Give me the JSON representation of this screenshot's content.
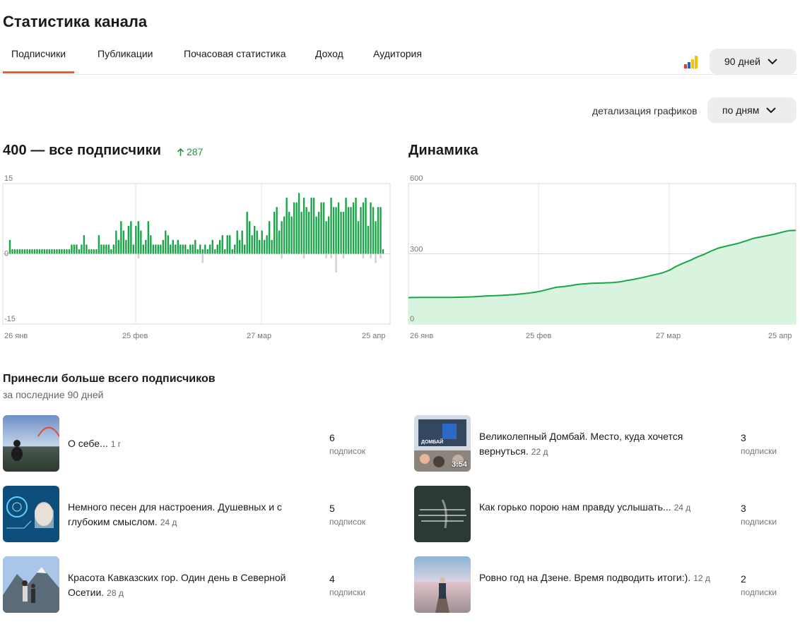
{
  "page_title": "Статистика канала",
  "tabs": [
    {
      "label": "Подписчики",
      "active": true
    },
    {
      "label": "Публикации",
      "active": false
    },
    {
      "label": "Почасовая статистика",
      "active": false
    },
    {
      "label": "Доход",
      "active": false
    },
    {
      "label": "Аудитория",
      "active": false
    }
  ],
  "colors": {
    "accent": "#f25b21",
    "green": "#1a9a3e",
    "bar_green": "#1aa54a",
    "bar_gray": "#d0d0d0",
    "area_fill": "#d8f3de",
    "line": "#1aa54a"
  },
  "period_dropdown": {
    "value": "90 дней"
  },
  "detail": {
    "label": "детализация графиков",
    "value": "по дням"
  },
  "subscribers_chart": {
    "title": "400 — все подписчики",
    "growth": "287"
  },
  "dynamics_chart": {
    "title": "Динамика"
  },
  "chart_data": [
    {
      "type": "bar",
      "title": "400 — все подписчики",
      "y_ticks": [
        "15",
        "0",
        "-15"
      ],
      "ylim": [
        -15,
        15
      ],
      "x_tick_labels": [
        "26 янв",
        "25 фев",
        "27 мар",
        "25 апр"
      ],
      "grid": true,
      "series": [
        {
          "values": [
            3,
            1,
            1,
            1,
            1,
            1,
            1,
            1,
            1,
            1,
            1,
            1,
            1,
            1,
            1,
            1,
            1,
            1,
            1,
            1,
            1,
            1,
            1,
            1,
            1,
            2,
            2,
            2,
            1,
            2,
            4,
            2,
            1,
            1,
            1,
            1,
            4,
            2,
            2,
            2,
            2,
            1,
            2,
            5,
            3,
            7,
            5,
            3,
            6,
            7,
            2,
            6,
            7,
            5,
            2,
            3,
            7,
            4,
            2,
            2,
            2,
            2,
            3,
            5,
            4,
            2,
            3,
            2,
            3,
            2,
            2,
            2,
            1,
            2,
            2,
            3,
            1,
            2,
            1,
            2,
            1,
            2,
            3,
            1,
            2,
            3,
            4,
            1,
            4,
            4,
            1,
            2,
            5,
            3,
            5,
            2,
            9,
            7,
            4,
            6,
            5,
            3,
            5,
            3,
            4,
            7,
            3,
            9,
            10,
            5,
            7,
            8,
            12,
            9,
            8,
            11,
            11,
            13,
            9,
            12,
            10,
            9,
            12,
            12,
            8,
            9,
            11,
            11,
            7,
            8,
            12,
            10,
            10,
            11,
            9,
            9,
            12,
            10,
            10,
            11,
            12,
            7,
            10,
            11,
            12,
            6,
            11,
            10,
            7,
            10,
            10,
            1
          ]
        },
        {
          "values": [
            0,
            0,
            0,
            0,
            0,
            0,
            0,
            0,
            0,
            0,
            0,
            0,
            0,
            0,
            0,
            0,
            0,
            0,
            0,
            0,
            0,
            0,
            0,
            0,
            0,
            0,
            0,
            0,
            0,
            0,
            0,
            0,
            0,
            0,
            0,
            0,
            0,
            0,
            0,
            0,
            0,
            0,
            0,
            0,
            0,
            0,
            0,
            0,
            0,
            0,
            0,
            0,
            -1,
            0,
            0,
            0,
            0,
            0,
            0,
            0,
            0,
            0,
            0,
            0,
            0,
            0,
            0,
            0,
            0,
            0,
            0,
            0,
            0,
            0,
            0,
            0,
            0,
            0,
            -2,
            0,
            0,
            0,
            0,
            0,
            0,
            0,
            0,
            0,
            0,
            0,
            0,
            0,
            0,
            0,
            0,
            0,
            0,
            0,
            0,
            0,
            0,
            0,
            0,
            0,
            0,
            0,
            0,
            0,
            0,
            0,
            -1,
            0,
            0,
            0,
            0,
            0,
            0,
            0,
            0,
            -1,
            0,
            0,
            0,
            0,
            0,
            0,
            0,
            0,
            -1,
            0,
            -1,
            0,
            -4,
            0,
            0,
            -1,
            0,
            0,
            0,
            0,
            0,
            0,
            0,
            -1,
            0,
            0,
            -1,
            0,
            -2,
            0,
            -1,
            0,
            0,
            0
          ]
        }
      ]
    },
    {
      "type": "area",
      "title": "Динамика",
      "y_ticks": [
        "600",
        "300",
        "0"
      ],
      "ylim": [
        0,
        600
      ],
      "x_tick_labels": [
        "26 янв",
        "25 фев",
        "27 мар",
        "25 апр"
      ],
      "grid": true,
      "x": [
        0,
        15,
        30,
        45,
        60,
        75,
        90,
        100,
        110,
        120,
        130,
        140,
        150,
        160,
        170,
        180,
        190,
        200,
        210,
        220,
        230,
        240,
        250,
        260,
        270,
        280,
        290,
        300,
        310,
        320,
        330,
        340,
        350,
        360,
        370,
        380,
        390,
        400,
        410,
        420,
        430,
        440,
        450,
        460,
        470,
        480,
        490,
        500,
        510,
        520,
        530,
        540,
        550
      ],
      "values": [
        113,
        114,
        114,
        114,
        114,
        115,
        116,
        118,
        120,
        121,
        122,
        124,
        126,
        129,
        132,
        136,
        142,
        150,
        157,
        160,
        164,
        169,
        172,
        174,
        175,
        176,
        177,
        180,
        186,
        191,
        197,
        204,
        211,
        218,
        229,
        246,
        260,
        272,
        286,
        298,
        312,
        324,
        332,
        339,
        346,
        356,
        366,
        372,
        378,
        384,
        392,
        399,
        400
      ]
    }
  ],
  "top_section": {
    "title": "Принесли больше всего подписчиков",
    "subtitle": "за последние 90 дней"
  },
  "top_items": [
    {
      "title": "О себе...",
      "age": "1 г",
      "count": "6",
      "unit": "подписок",
      "thumb": "sunset-person"
    },
    {
      "title": "Немного песен для настроения. Душевных и с глубоким смыслом.",
      "age": "24 д",
      "count": "5",
      "unit": "подписок",
      "thumb": "tech-face"
    },
    {
      "title": "Красота Кавказских гор. Один день в Северной Осетии.",
      "age": "28 д",
      "count": "4",
      "unit": "подписки",
      "thumb": "mountain-people"
    },
    {
      "title": "Великолепный Домбай. Место, куда хочется вернуться.",
      "age": "22 д",
      "count": "3",
      "unit": "подписки",
      "thumb": "dombai-sign",
      "duration": "3:54",
      "sign": "ДОМБАЙ"
    },
    {
      "title": "Как горько порою нам правду услышать...",
      "age": "24 д",
      "count": "3",
      "unit": "подписки",
      "thumb": "dark-poem"
    },
    {
      "title": "Ровно год на Дзене. Время подводить итоги:).",
      "age": "12 д",
      "count": "2",
      "unit": "подписки",
      "thumb": "rail-lake"
    }
  ]
}
